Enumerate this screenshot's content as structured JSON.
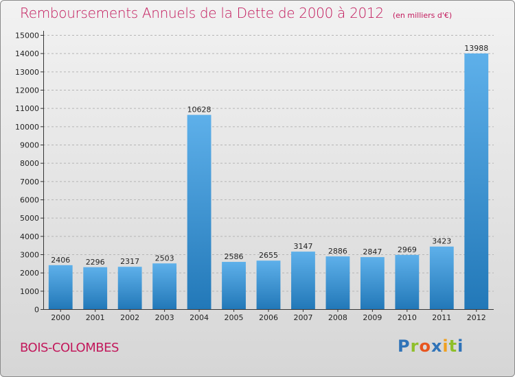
{
  "title": "Remboursements Annuels de la Dette de 2000 à 2012",
  "subtitle": "(en milliers d'€)",
  "location": "BOIS-COLOMBES",
  "logo": {
    "text": "Proxiti",
    "letter_colors": [
      "#2f73b8",
      "#8fbf2a",
      "#e8551f",
      "#2f73b8",
      "#f0a020",
      "#8fbf2a",
      "#2f73b8"
    ]
  },
  "colors": {
    "title": "#c2185b",
    "bar_top": "#5eb0ea",
    "bar_bottom": "#2278b8"
  },
  "chart_data": {
    "type": "bar",
    "categories": [
      "2000",
      "2001",
      "2002",
      "2003",
      "2004",
      "2005",
      "2006",
      "2007",
      "2008",
      "2009",
      "2010",
      "2011",
      "2012"
    ],
    "values": [
      2406,
      2296,
      2317,
      2503,
      10628,
      2586,
      2655,
      3147,
      2886,
      2847,
      2969,
      3423,
      13988
    ],
    "ylim": [
      0,
      15000
    ],
    "yticks": [
      0,
      1000,
      2000,
      3000,
      4000,
      5000,
      6000,
      7000,
      8000,
      9000,
      10000,
      11000,
      12000,
      13000,
      14000,
      15000
    ],
    "grid": true,
    "title": "Remboursements Annuels de la Dette de 2000 à 2012",
    "xlabel": "",
    "ylabel": ""
  }
}
